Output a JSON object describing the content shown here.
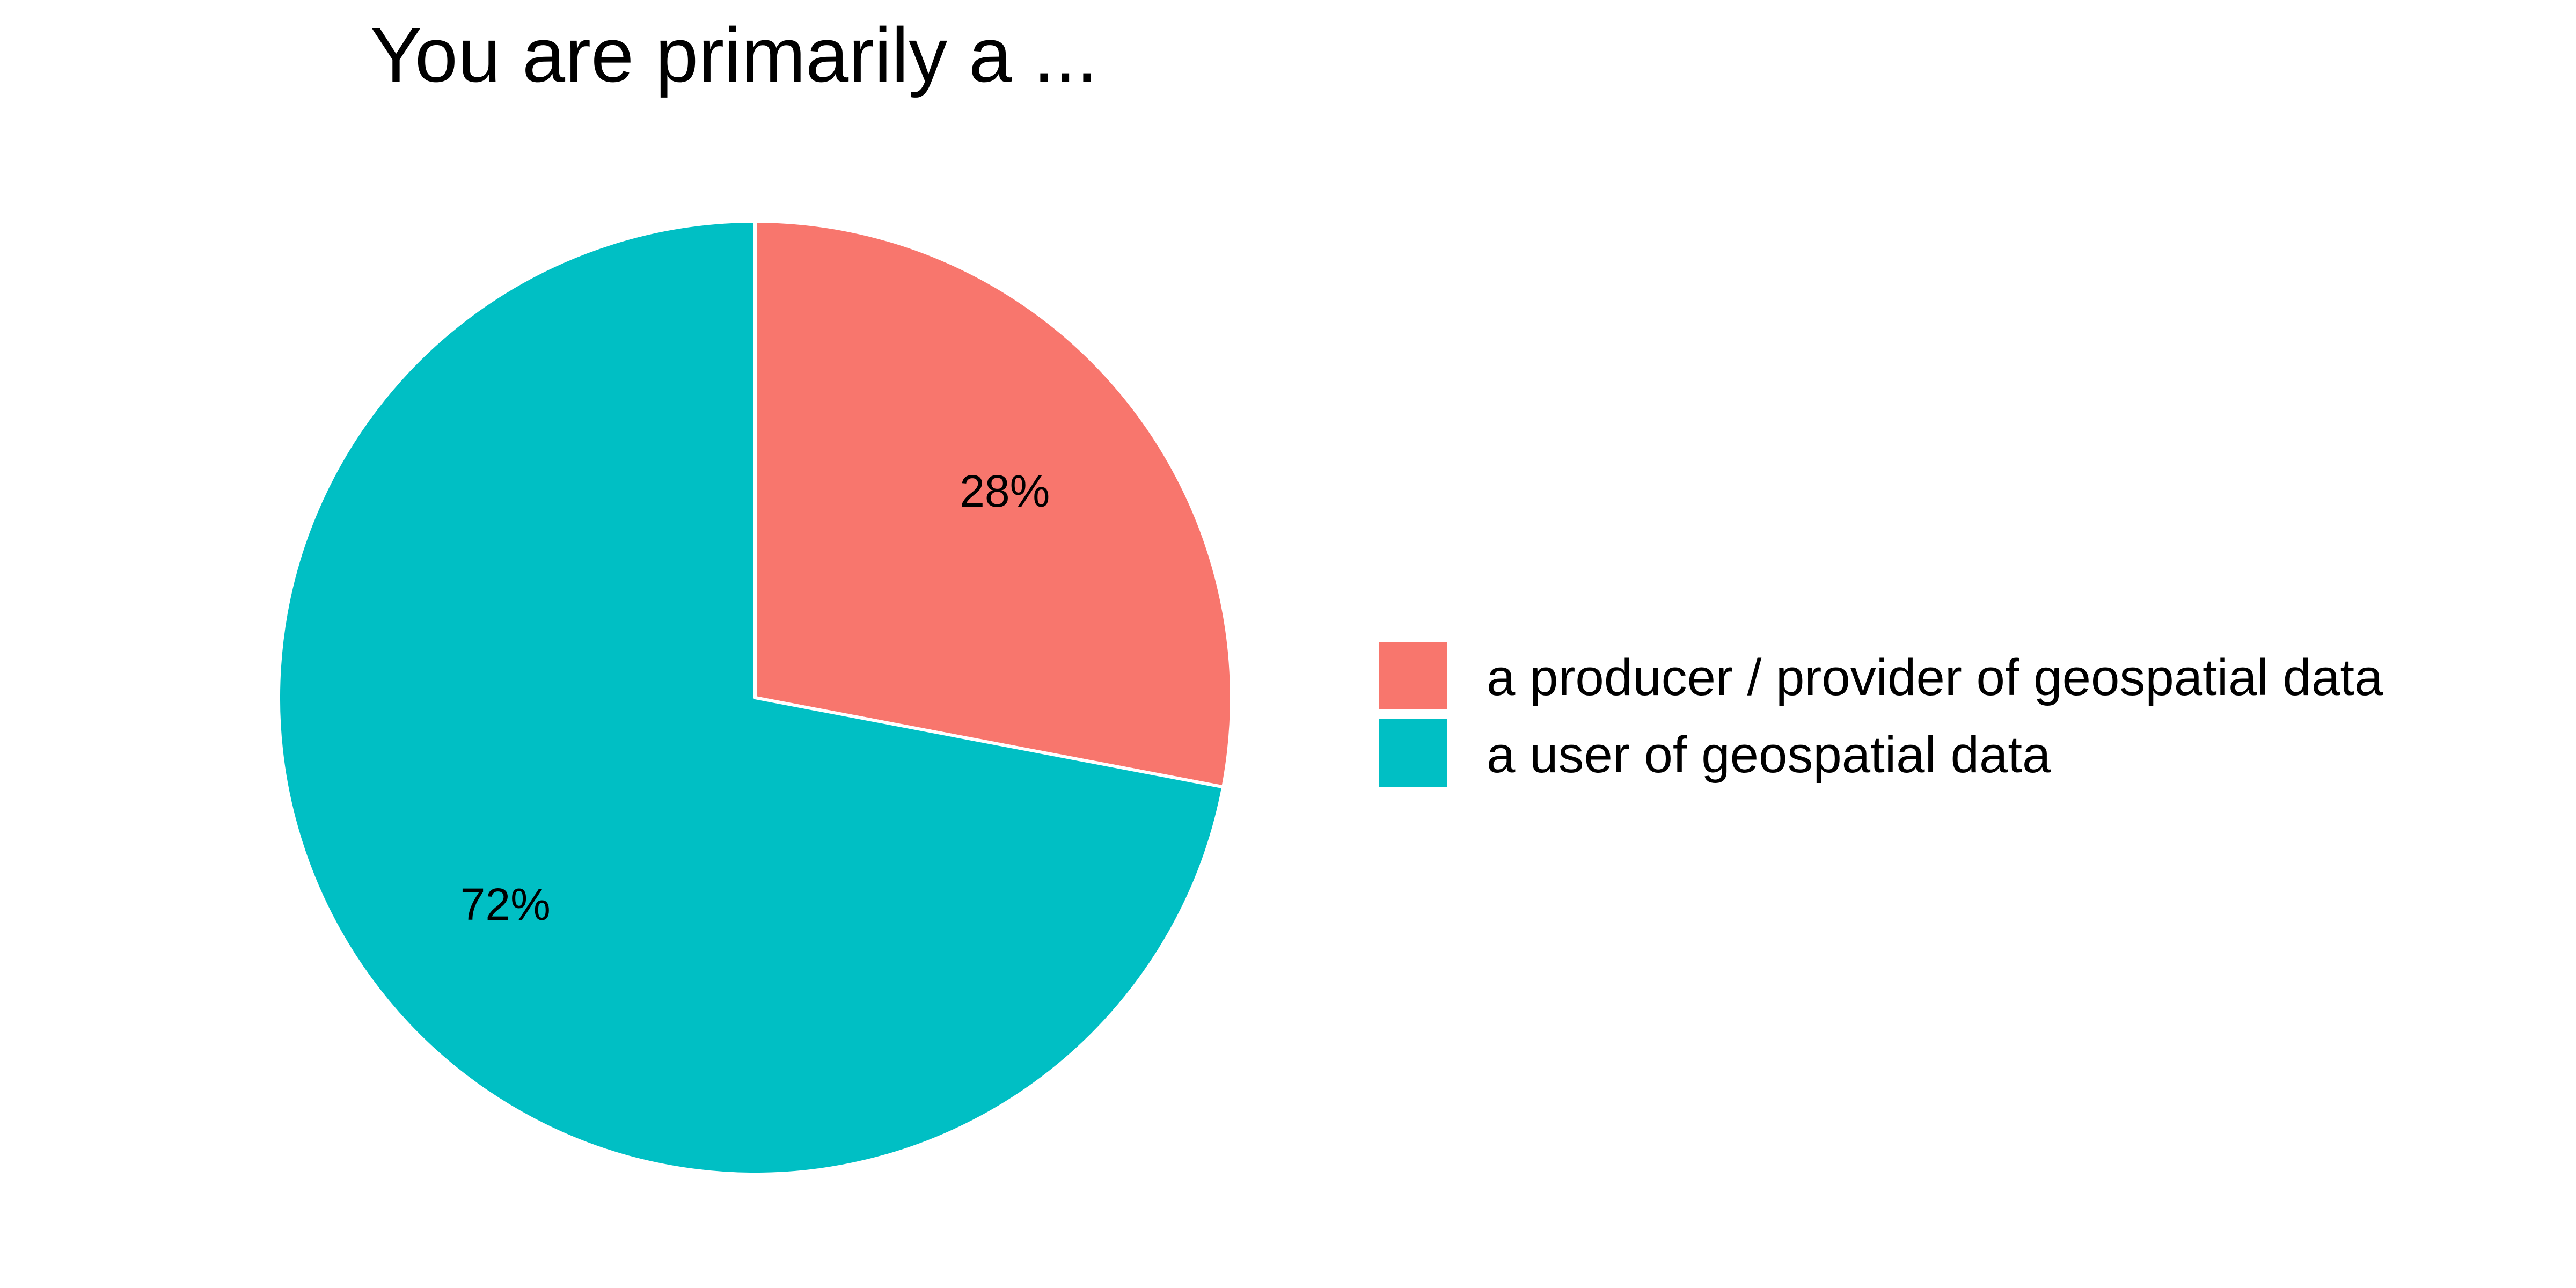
{
  "chart_data": {
    "type": "pie",
    "title": "You are primarily a ...",
    "start_angle_deg": 0,
    "direction": "clockwise",
    "slices": [
      {
        "name": "a producer / provider of geospatial data",
        "value": 28,
        "label": "28%",
        "color": "#F8766D"
      },
      {
        "name": "a user of geospatial data",
        "value": 72,
        "label": "72%",
        "color": "#00BFC4"
      }
    ],
    "legend": {
      "position": "right",
      "entries": [
        "a producer / provider of geospatial data",
        "a user of geospatial data"
      ]
    },
    "slice_border_color": "#FFFFFF"
  }
}
